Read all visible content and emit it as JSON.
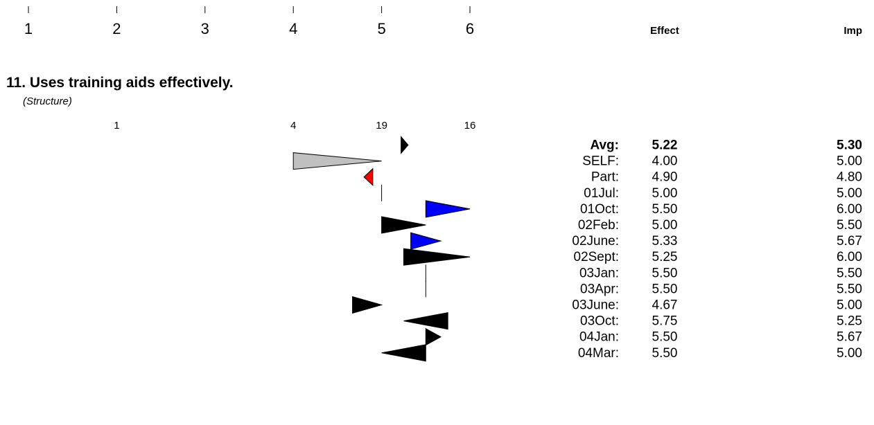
{
  "colors": {
    "default": "#000000",
    "self": "#c0c0c0",
    "participant": "#ff0000",
    "highlight": "#0000ff"
  },
  "chart_data": {
    "type": "scatter",
    "scale": {
      "ticks": [
        "1",
        "2",
        "3",
        "4",
        "5",
        "6"
      ],
      "range": [
        1,
        6
      ]
    },
    "columns": {
      "effect": "Effect",
      "imp": "Imp"
    },
    "item": {
      "title": "11. Uses training aids effectively.",
      "category": "(Structure)",
      "counts": [
        {
          "x": 2,
          "label": "1"
        },
        {
          "x": 4,
          "label": "4"
        },
        {
          "x": 5,
          "label": "19"
        },
        {
          "x": 6,
          "label": "16"
        }
      ],
      "rows": [
        {
          "label": "Avg:",
          "effect": 5.22,
          "imp": 5.3,
          "effect_text": "5.22",
          "imp_text": "5.30",
          "bold": true,
          "style": "default"
        },
        {
          "label": "SELF:",
          "effect": 4.0,
          "imp": 5.0,
          "effect_text": "4.00",
          "imp_text": "5.00",
          "style": "self"
        },
        {
          "label": "Part:",
          "effect": 4.9,
          "imp": 4.8,
          "effect_text": "4.90",
          "imp_text": "4.80",
          "style": "participant"
        },
        {
          "label": "01Jul:",
          "effect": 5.0,
          "imp": 5.0,
          "effect_text": "5.00",
          "imp_text": "5.00",
          "style": "default"
        },
        {
          "label": "01Oct:",
          "effect": 5.5,
          "imp": 6.0,
          "effect_text": "5.50",
          "imp_text": "6.00",
          "style": "highlight"
        },
        {
          "label": "02Feb:",
          "effect": 5.0,
          "imp": 5.5,
          "effect_text": "5.00",
          "imp_text": "5.50",
          "style": "default"
        },
        {
          "label": "02June:",
          "effect": 5.33,
          "imp": 5.67,
          "effect_text": "5.33",
          "imp_text": "5.67",
          "style": "highlight"
        },
        {
          "label": "02Sept:",
          "effect": 5.25,
          "imp": 6.0,
          "effect_text": "5.25",
          "imp_text": "6.00",
          "style": "default"
        },
        {
          "label": "03Jan:",
          "effect": 5.5,
          "imp": 5.5,
          "effect_text": "5.50",
          "imp_text": "5.50",
          "style": "default"
        },
        {
          "label": "03Apr:",
          "effect": 5.5,
          "imp": 5.5,
          "effect_text": "5.50",
          "imp_text": "5.50",
          "style": "default"
        },
        {
          "label": "03June:",
          "effect": 4.67,
          "imp": 5.0,
          "effect_text": "4.67",
          "imp_text": "5.00",
          "style": "default"
        },
        {
          "label": "03Oct:",
          "effect": 5.75,
          "imp": 5.25,
          "effect_text": "5.75",
          "imp_text": "5.25",
          "style": "default"
        },
        {
          "label": "04Jan:",
          "effect": 5.5,
          "imp": 5.67,
          "effect_text": "5.50",
          "imp_text": "5.67",
          "style": "default"
        },
        {
          "label": "04Mar:",
          "effect": 5.5,
          "imp": 5.0,
          "effect_text": "5.50",
          "imp_text": "5.00",
          "style": "default"
        }
      ]
    }
  }
}
